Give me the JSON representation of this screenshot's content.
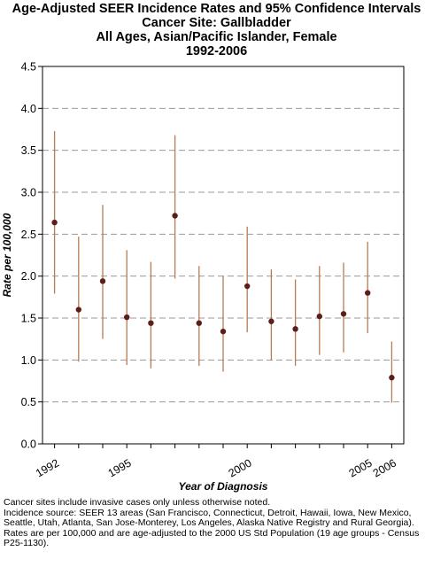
{
  "chart_data": {
    "type": "scatter",
    "title_lines": [
      "Age-Adjusted SEER Incidence Rates and 95% Confidence Intervals",
      "Cancer Site: Gallbladder",
      "All Ages, Asian/Pacific Islander, Female",
      "1992-2006"
    ],
    "xlabel": "Year of Diagnosis",
    "ylabel": "Rate per 100,000",
    "xlim": [
      1991.5,
      2006.5
    ],
    "ylim": [
      0,
      4.5
    ],
    "y_ticks": [
      "0.0",
      "0.5",
      "1.0",
      "1.5",
      "2.0",
      "2.5",
      "3.0",
      "3.5",
      "4.0",
      "4.5"
    ],
    "x_tick_years": [
      1992,
      1995,
      2000,
      2005,
      2006
    ],
    "x_tick_labels": [
      "1992",
      "1995",
      "2000",
      "2005",
      "2006"
    ],
    "grid": "horizontal-dashed",
    "point_color": "#5a1f1a",
    "ci_color": "#b87a55",
    "points": [
      {
        "x": 1992,
        "y": 2.64,
        "lo": 1.79,
        "hi": 3.73
      },
      {
        "x": 1993,
        "y": 1.6,
        "lo": 0.98,
        "hi": 2.47
      },
      {
        "x": 1994,
        "y": 1.94,
        "lo": 1.25,
        "hi": 2.85
      },
      {
        "x": 1995,
        "y": 1.51,
        "lo": 0.94,
        "hi": 2.31
      },
      {
        "x": 1996,
        "y": 1.44,
        "lo": 0.9,
        "hi": 2.17
      },
      {
        "x": 1997,
        "y": 2.72,
        "lo": 1.97,
        "hi": 3.68
      },
      {
        "x": 1998,
        "y": 1.44,
        "lo": 0.93,
        "hi": 2.12
      },
      {
        "x": 1999,
        "y": 1.34,
        "lo": 0.86,
        "hi": 2.0
      },
      {
        "x": 2000,
        "y": 1.88,
        "lo": 1.33,
        "hi": 2.59
      },
      {
        "x": 2001,
        "y": 1.46,
        "lo": 1.0,
        "hi": 2.08
      },
      {
        "x": 2002,
        "y": 1.37,
        "lo": 0.93,
        "hi": 1.96
      },
      {
        "x": 2003,
        "y": 1.52,
        "lo": 1.06,
        "hi": 2.12
      },
      {
        "x": 2004,
        "y": 1.55,
        "lo": 1.09,
        "hi": 2.16
      },
      {
        "x": 2005,
        "y": 1.8,
        "lo": 1.32,
        "hi": 2.41
      },
      {
        "x": 2006,
        "y": 0.79,
        "lo": 0.49,
        "hi": 1.22
      }
    ]
  },
  "footnotes": [
    "Cancer sites include invasive cases only unless otherwise noted.",
    "Incidence source: SEER 13 areas (San Francisco, Connecticut, Detroit, Hawaii, Iowa, New Mexico, Seattle, Utah, Atlanta, San Jose-Monterey, Los Angeles, Alaska Native Registry and Rural Georgia).",
    "Rates are per 100,000 and are age-adjusted to the 2000 US Std Population (19 age groups - Census P25-1130)."
  ]
}
